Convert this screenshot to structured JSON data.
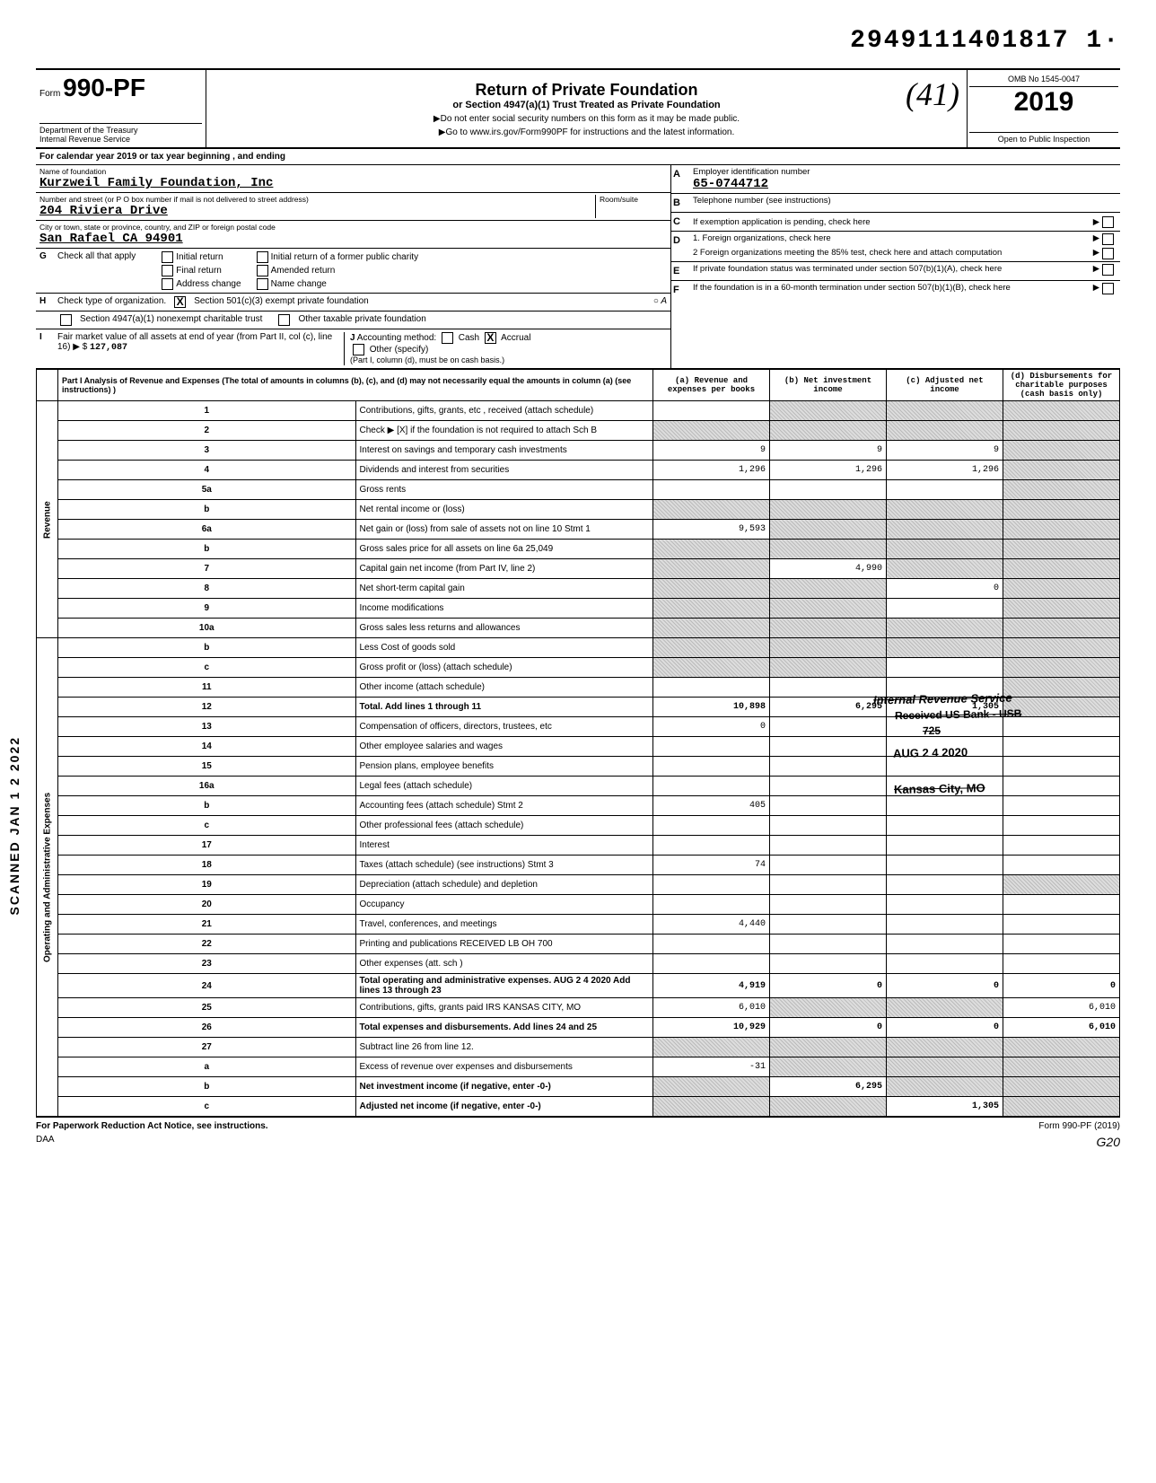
{
  "doc_id": "2949111401817  1·",
  "form": {
    "label_prefix": "Form",
    "number": "990-PF",
    "dept1": "Department of the Treasury",
    "dept2": "Internal Revenue Service"
  },
  "title": {
    "main": "Return of Private Foundation",
    "sub": "or Section 4947(a)(1) Trust Treated as Private Foundation",
    "line1": "▶Do not enter social security numbers on this form as it may be made public.",
    "line2": "▶Go to www.irs.gov/Form990PF for instructions and the latest information.",
    "handwritten": "(41)"
  },
  "yearbox": {
    "omb": "OMB No  1545-0047",
    "year": "2019",
    "inspect": "Open to Public Inspection"
  },
  "cal_line": "For calendar year 2019 or tax year beginning                                             , and ending",
  "foundation": {
    "name_label": "Name of foundation",
    "name": "Kurzweil Family Foundation, Inc",
    "addr_label": "Number and street (or P O  box number if mail is not delivered to street address)",
    "room_label": "Room/suite",
    "street": "204 Riviera Drive",
    "city_label": "City or town, state or province, country, and ZIP or foreign postal code",
    "city": "San Rafael                  CA 94901"
  },
  "right_info": {
    "A_label": "Employer identification number",
    "A_val": "65-0744712",
    "B_label": "Telephone number (see instructions)",
    "C_label": "If exemption application is pending, check here",
    "D1": "1.  Foreign organizations, check here",
    "D2": "2   Foreign organizations meeting the 85% test, check here and attach computation",
    "E": "If private foundation status was terminated under section 507(b)(1)(A), check here",
    "F": "If the foundation is in a 60-month termination under section 507(b)(1)(B), check here"
  },
  "G": {
    "label": "Check all that apply",
    "opts": [
      "Initial return",
      "Final return",
      "Address change",
      "Initial return of a former public charity",
      "Amended return",
      "Name change"
    ]
  },
  "H": {
    "text": "Check type of organization.",
    "o1": "Section 501(c)(3) exempt private foundation",
    "o2": "Section 4947(a)(1) nonexempt charitable trust",
    "o3": "Other taxable private foundation",
    "checked": "X",
    "annot": "○ A"
  },
  "I": {
    "text": "Fair market value of all assets at end of year (from Part II, col (c), line 16) ▶  $",
    "val": "127,087",
    "J": "Accounting method:",
    "cash": "Cash",
    "accrual": "Accrual",
    "acc_checked": "X",
    "other": "Other (specify)",
    "note": "(Part I, column (d), must be on cash basis.)"
  },
  "part1": {
    "header": "Part I    Analysis of Revenue and Expenses (The total of amounts in columns (b), (c), and (d) may not necessarily equal the amounts in column (a) (see instructions) )",
    "cols": {
      "a": "(a) Revenue and expenses per books",
      "b": "(b) Net investment income",
      "c": "(c) Adjusted net income",
      "d": "(d) Disbursements for charitable purposes (cash basis only)"
    }
  },
  "revenue_label": "Revenue",
  "opexp_label": "Operating and Administrative Expenses",
  "rows": [
    {
      "n": "1",
      "desc": "Contributions, gifts, grants, etc , received (attach schedule)",
      "a": "",
      "b": "",
      "c": "",
      "d": "",
      "shade_a": false,
      "shade_b": true,
      "shade_c": true,
      "shade_d": true
    },
    {
      "n": "2",
      "desc": "Check ▶  [X]  if the foundation is not required to attach Sch  B",
      "a": "",
      "b": "",
      "c": "",
      "d": "",
      "shade_a": true,
      "shade_b": true,
      "shade_c": true,
      "shade_d": true
    },
    {
      "n": "3",
      "desc": "Interest on savings and temporary cash investments",
      "a": "9",
      "b": "9",
      "c": "9",
      "d": "",
      "shade_d": true
    },
    {
      "n": "4",
      "desc": "Dividends and interest from securities",
      "a": "1,296",
      "b": "1,296",
      "c": "1,296",
      "d": "",
      "shade_d": true
    },
    {
      "n": "5a",
      "desc": "Gross rents",
      "a": "",
      "b": "",
      "c": "",
      "d": "",
      "shade_d": true
    },
    {
      "n": "b",
      "desc": "Net rental income or (loss)",
      "a": "",
      "b": "",
      "c": "",
      "d": "",
      "shade_a": true,
      "shade_b": true,
      "shade_c": true,
      "shade_d": true
    },
    {
      "n": "6a",
      "desc": "Net gain or (loss) from sale of assets not on line 10     Stmt 1",
      "a": "9,593",
      "b": "",
      "c": "",
      "d": "",
      "shade_b": true,
      "shade_c": true,
      "shade_d": true
    },
    {
      "n": "b",
      "desc": "Gross sales price for all assets on line 6a              25,049",
      "a": "",
      "b": "",
      "c": "",
      "d": "",
      "shade_a": true,
      "shade_b": true,
      "shade_c": true,
      "shade_d": true
    },
    {
      "n": "7",
      "desc": "Capital gain net income (from Part IV, line 2)",
      "a": "",
      "b": "4,990",
      "c": "",
      "d": "",
      "shade_a": true,
      "shade_c": true,
      "shade_d": true
    },
    {
      "n": "8",
      "desc": "Net short-term capital gain",
      "a": "",
      "b": "",
      "c": "0",
      "d": "",
      "shade_a": true,
      "shade_b": true,
      "shade_d": true
    },
    {
      "n": "9",
      "desc": "Income modifications",
      "a": "",
      "b": "",
      "c": "",
      "d": "",
      "shade_a": true,
      "shade_b": true,
      "shade_d": true
    },
    {
      "n": "10a",
      "desc": "Gross sales less returns and allowances",
      "a": "",
      "b": "",
      "c": "",
      "d": "",
      "shade_a": true,
      "shade_b": true,
      "shade_c": true,
      "shade_d": true
    },
    {
      "n": "b",
      "desc": "Less  Cost of goods sold",
      "a": "",
      "b": "",
      "c": "",
      "d": "",
      "shade_a": true,
      "shade_b": true,
      "shade_c": true,
      "shade_d": true
    },
    {
      "n": "c",
      "desc": "Gross profit or (loss) (attach schedule)",
      "a": "",
      "b": "",
      "c": "",
      "d": "",
      "shade_a": true,
      "shade_b": true,
      "shade_d": true
    },
    {
      "n": "11",
      "desc": "Other income (attach schedule)",
      "a": "",
      "b": "",
      "c": "",
      "d": "",
      "shade_d": true
    },
    {
      "n": "12",
      "desc": "Total. Add lines 1 through 11",
      "a": "10,898",
      "b": "6,295",
      "c": "1,305",
      "d": "",
      "bold": true,
      "shade_d": true
    },
    {
      "n": "13",
      "desc": "Compensation of officers, directors, trustees, etc",
      "a": "0",
      "b": "",
      "c": "",
      "d": ""
    },
    {
      "n": "14",
      "desc": "Other employee salaries and wages",
      "a": "",
      "b": "",
      "c": "",
      "d": ""
    },
    {
      "n": "15",
      "desc": "Pension plans, employee benefits",
      "a": "",
      "b": "",
      "c": "",
      "d": ""
    },
    {
      "n": "16a",
      "desc": "Legal fees (attach schedule)",
      "a": "",
      "b": "",
      "c": "",
      "d": ""
    },
    {
      "n": "b",
      "desc": "Accounting fees (attach schedule)         Stmt 2",
      "a": "405",
      "b": "",
      "c": "",
      "d": ""
    },
    {
      "n": "c",
      "desc": "Other professional fees (attach schedule)",
      "a": "",
      "b": "",
      "c": "",
      "d": ""
    },
    {
      "n": "17",
      "desc": "Interest",
      "a": "",
      "b": "",
      "c": "",
      "d": ""
    },
    {
      "n": "18",
      "desc": "Taxes (attach schedule) (see instructions)      Stmt 3",
      "a": "74",
      "b": "",
      "c": "",
      "d": ""
    },
    {
      "n": "19",
      "desc": "Depreciation (attach schedule) and depletion",
      "a": "",
      "b": "",
      "c": "",
      "d": "",
      "shade_d": true
    },
    {
      "n": "20",
      "desc": "Occupancy",
      "a": "",
      "b": "",
      "c": "",
      "d": ""
    },
    {
      "n": "21",
      "desc": "Travel, conferences, and meetings",
      "a": "4,440",
      "b": "",
      "c": "",
      "d": ""
    },
    {
      "n": "22",
      "desc": "Printing and publications             RECEIVED LB OH 700",
      "a": "",
      "b": "",
      "c": "",
      "d": ""
    },
    {
      "n": "23",
      "desc": "Other expenses (att. sch )",
      "a": "",
      "b": "",
      "c": "",
      "d": ""
    },
    {
      "n": "24",
      "desc": "Total operating and administrative expenses.  AUG 2 4 2020   Add lines 13 through 23",
      "a": "4,919",
      "b": "0",
      "c": "0",
      "d": "0",
      "bold": true
    },
    {
      "n": "25",
      "desc": "Contributions, gifts, grants paid      IRS KANSAS CITY, MO",
      "a": "6,010",
      "b": "",
      "c": "",
      "d": "6,010",
      "shade_b": true,
      "shade_c": true
    },
    {
      "n": "26",
      "desc": "Total expenses and disbursements. Add lines 24 and 25",
      "a": "10,929",
      "b": "0",
      "c": "0",
      "d": "6,010",
      "bold": true
    },
    {
      "n": "27",
      "desc": "Subtract line 26 from line 12.",
      "a": "",
      "b": "",
      "c": "",
      "d": "",
      "shade_a": true,
      "shade_b": true,
      "shade_c": true,
      "shade_d": true
    },
    {
      "n": "a",
      "desc": "Excess of revenue over expenses and disbursements",
      "a": "-31",
      "b": "",
      "c": "",
      "d": "",
      "shade_b": true,
      "shade_c": true,
      "shade_d": true
    },
    {
      "n": "b",
      "desc": "Net investment income (if negative, enter -0-)",
      "a": "",
      "b": "6,295",
      "c": "",
      "d": "",
      "bold": true,
      "shade_a": true,
      "shade_c": true,
      "shade_d": true
    },
    {
      "n": "c",
      "desc": "Adjusted net income (if negative, enter -0-)",
      "a": "",
      "b": "",
      "c": "1,305",
      "d": "",
      "bold": true,
      "shade_a": true,
      "shade_b": true,
      "shade_d": true
    }
  ],
  "stamps": {
    "irs1": "Internal Revenue Service",
    "irs2": "Received US Bank - USB",
    "irs3": "725",
    "irs4": "AUG 2 4 2020",
    "irs5": "Kansas City, MO"
  },
  "scan_side": "SCANNED  JAN 1 2 2022",
  "footer": {
    "left": "For Paperwork Reduction Act Notice, see instructions.",
    "mid": "DAA",
    "right": "Form 990-PF (2019)",
    "hand": "G20"
  }
}
